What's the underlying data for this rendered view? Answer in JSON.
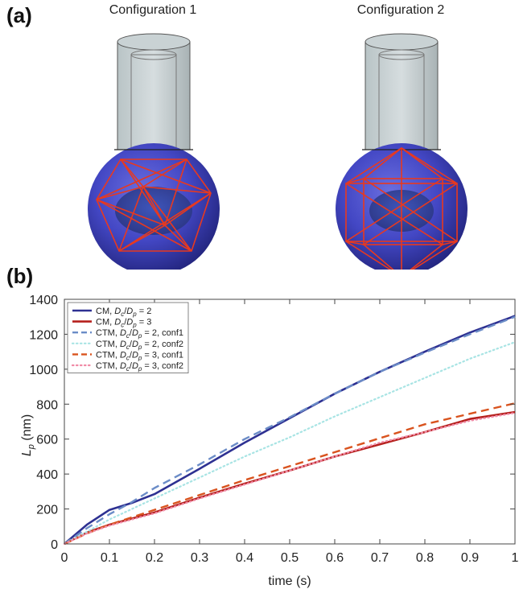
{
  "panel_a": {
    "label": "(a)",
    "configs": [
      {
        "title": "Configuration 1"
      },
      {
        "title": "Configuration 2"
      }
    ]
  },
  "panel_b": {
    "label": "(b)"
  },
  "chart_data": {
    "type": "line",
    "title": "",
    "xlabel": "time (s)",
    "ylabel": "L_p (nm)",
    "xlim": [
      0,
      1
    ],
    "ylim": [
      0,
      1400
    ],
    "xticks": [
      0,
      0.1,
      0.2,
      0.3,
      0.4,
      0.5,
      0.6,
      0.7,
      0.8,
      0.9,
      1
    ],
    "xtick_labels": [
      "0",
      "0.1",
      "0.2",
      "0.3",
      "0.4",
      "0.5",
      "0.6",
      "0.7",
      "0.8",
      "0.9",
      "1"
    ],
    "yticks": [
      0,
      200,
      400,
      600,
      800,
      1000,
      1200,
      1400
    ],
    "ytick_labels": [
      "0",
      "200",
      "400",
      "600",
      "800",
      "1000",
      "1200",
      "1400"
    ],
    "grid": false,
    "legend_position": "top-left",
    "series": [
      {
        "name": "CM, D_c/D_p = 2",
        "label_parts": [
          "CM, ",
          "D",
          "c",
          "/",
          "D",
          "p",
          " = 2"
        ],
        "color": "#2e3192",
        "style": "solid",
        "width": 2.6,
        "x": [
          0,
          0.05,
          0.1,
          0.15,
          0.2,
          0.3,
          0.4,
          0.5,
          0.6,
          0.7,
          0.8,
          0.9,
          1.0
        ],
        "y": [
          0,
          110,
          195,
          235,
          285,
          430,
          580,
          720,
          860,
          985,
          1100,
          1210,
          1305
        ]
      },
      {
        "name": "CM, D_c/D_p = 3",
        "label_parts": [
          "CM, ",
          "D",
          "c",
          "/",
          "D",
          "p",
          " = 3"
        ],
        "color": "#b5201c",
        "style": "solid",
        "width": 2.6,
        "x": [
          0,
          0.05,
          0.1,
          0.2,
          0.3,
          0.4,
          0.5,
          0.6,
          0.7,
          0.8,
          0.9,
          1.0
        ],
        "y": [
          0,
          65,
          110,
          180,
          265,
          345,
          420,
          500,
          570,
          640,
          715,
          755
        ]
      },
      {
        "name": "CTM, D_c/D_p = 2, conf1",
        "label_parts": [
          "CTM, ",
          "D",
          "c",
          "/",
          "D",
          "p",
          " = 2, conf1"
        ],
        "color": "#6b8cc7",
        "style": "dashed",
        "width": 2.4,
        "x": [
          0,
          0.05,
          0.1,
          0.15,
          0.2,
          0.3,
          0.4,
          0.5,
          0.6,
          0.7,
          0.8,
          0.9,
          1.0
        ],
        "y": [
          0,
          90,
          170,
          240,
          320,
          455,
          600,
          725,
          860,
          985,
          1095,
          1200,
          1300
        ]
      },
      {
        "name": "CTM, D_c/D_p = 2, conf2",
        "label_parts": [
          "CTM, ",
          "D",
          "c",
          "/",
          "D",
          "p",
          " = 2, conf2"
        ],
        "color": "#a8e4e4",
        "style": "dotted",
        "width": 2.2,
        "x": [
          0,
          0.05,
          0.1,
          0.2,
          0.3,
          0.4,
          0.5,
          0.6,
          0.7,
          0.8,
          0.9,
          1.0
        ],
        "y": [
          0,
          70,
          140,
          260,
          380,
          500,
          610,
          730,
          840,
          950,
          1060,
          1155
        ]
      },
      {
        "name": "CTM, D_c/D_p = 3, conf1",
        "label_parts": [
          "CTM, ",
          "D",
          "c",
          "/",
          "D",
          "p",
          " = 3, conf1"
        ],
        "color": "#d9531e",
        "style": "dashed",
        "width": 2.4,
        "x": [
          0,
          0.05,
          0.1,
          0.2,
          0.3,
          0.4,
          0.5,
          0.6,
          0.7,
          0.8,
          0.9,
          1.0
        ],
        "y": [
          0,
          60,
          110,
          195,
          280,
          365,
          445,
          525,
          605,
          685,
          745,
          805
        ]
      },
      {
        "name": "CTM, D_c/D_p = 3, conf2",
        "label_parts": [
          "CTM, ",
          "D",
          "c",
          "/",
          "D",
          "p",
          " = 3, conf2"
        ],
        "color": "#f08aa6",
        "style": "dotted",
        "width": 2.2,
        "x": [
          0,
          0.05,
          0.1,
          0.2,
          0.3,
          0.4,
          0.5,
          0.6,
          0.7,
          0.8,
          0.9,
          1.0
        ],
        "y": [
          0,
          60,
          105,
          175,
          260,
          340,
          420,
          500,
          580,
          640,
          705,
          750
        ]
      }
    ]
  }
}
